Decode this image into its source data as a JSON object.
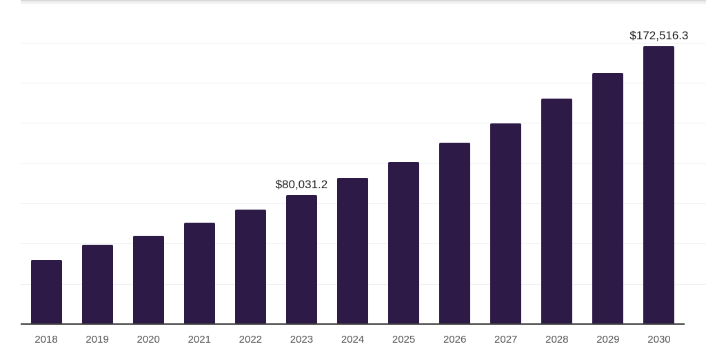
{
  "chart_data": {
    "type": "bar",
    "title": "",
    "xlabel": "",
    "ylabel": "",
    "categories": [
      "2018",
      "2019",
      "2020",
      "2021",
      "2022",
      "2023",
      "2024",
      "2025",
      "2026",
      "2027",
      "2028",
      "2029",
      "2030"
    ],
    "values": [
      39800,
      49250,
      54800,
      62950,
      71000,
      80031.2,
      90800,
      100900,
      112500,
      124900,
      140200,
      155900,
      172516.3
    ],
    "value_labels": [
      {
        "category": "2023",
        "text": "$80,031.2"
      },
      {
        "category": "2030",
        "text": "$172,516.3"
      }
    ],
    "ylim": [
      0,
      200000
    ],
    "gridline_step": 25000,
    "grid": true,
    "legend": "none",
    "y_tick_labels_visible": false,
    "colors": {
      "bar": "#2e1a47",
      "axis_line": "#3f3f3f",
      "gridline": "#efefef",
      "top_border": "#d9d9d9",
      "top_border_fill": "#f4f4f4",
      "tick_label": "#515154",
      "value_label": "#1b1b1b",
      "background": "#ffffff"
    }
  }
}
